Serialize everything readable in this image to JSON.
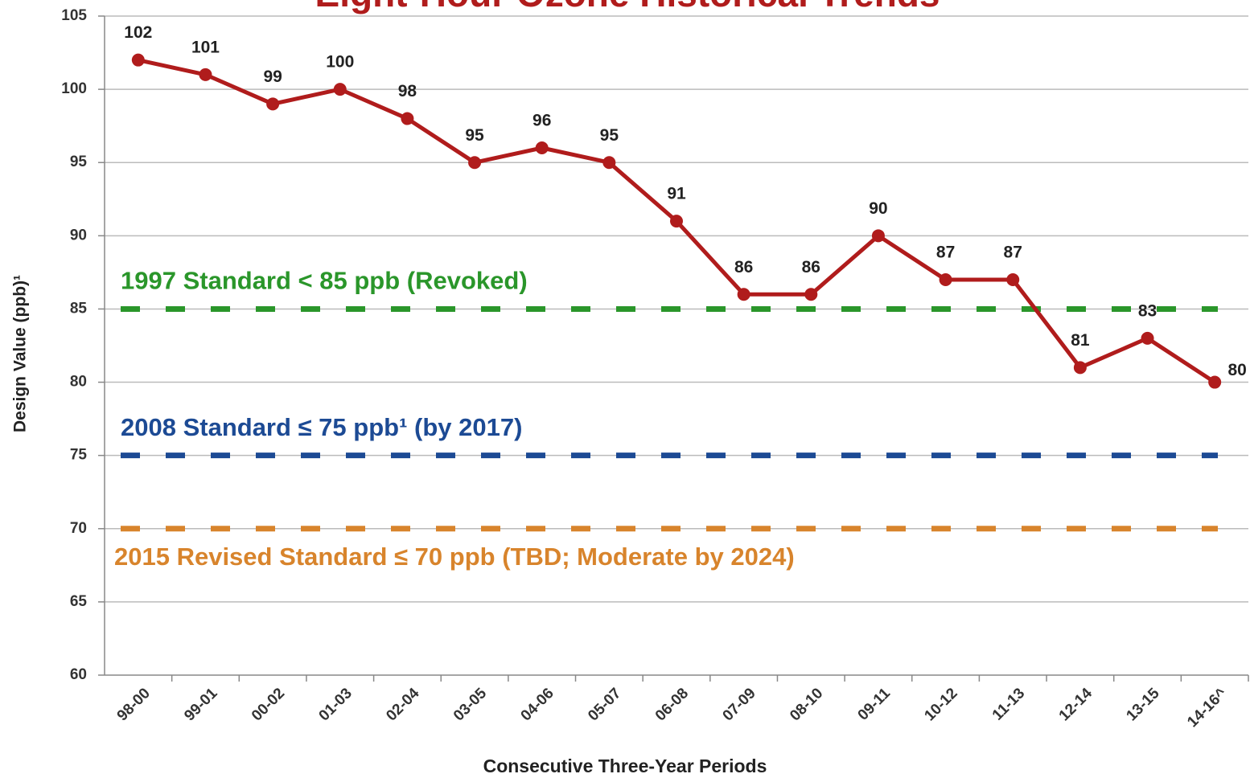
{
  "chart_data": {
    "type": "line",
    "title": "Eight-Hour Ozone Historical Trends",
    "x_label": "Consecutive Three-Year Periods",
    "y_label": "Design Value (ppb)¹",
    "categories": [
      "98-00",
      "99-01",
      "00-02",
      "01-03",
      "02-04",
      "03-05",
      "04-06",
      "05-07",
      "06-08",
      "07-09",
      "08-10",
      "09-11",
      "10-12",
      "11-13",
      "12-14",
      "13-15",
      "14-16^"
    ],
    "series": [
      {
        "name": "Design Value",
        "color": "#b01c1c",
        "values": [
          102,
          101,
          99,
          100,
          98,
          95,
          96,
          95,
          91,
          86,
          86,
          90,
          87,
          87,
          81,
          83,
          80
        ]
      }
    ],
    "reference_lines": [
      {
        "label": "1997 Standard < 85 ppb (Revoked)",
        "value": 85,
        "color": "#2a962a",
        "label_position": "above"
      },
      {
        "label": "2008 Standard ≤ 75 ppb¹ (by 2017)",
        "value": 75,
        "color": "#1c4a94",
        "label_position": "above"
      },
      {
        "label": "2015 Revised Standard ≤ 70 ppb (TBD; Moderate by 2024)",
        "value": 70,
        "color": "#d8842c",
        "label_position": "below"
      }
    ],
    "ylim": [
      60,
      105
    ],
    "yticks": [
      60,
      65,
      70,
      75,
      80,
      85,
      90,
      95,
      100,
      105
    ],
    "grid": true
  }
}
